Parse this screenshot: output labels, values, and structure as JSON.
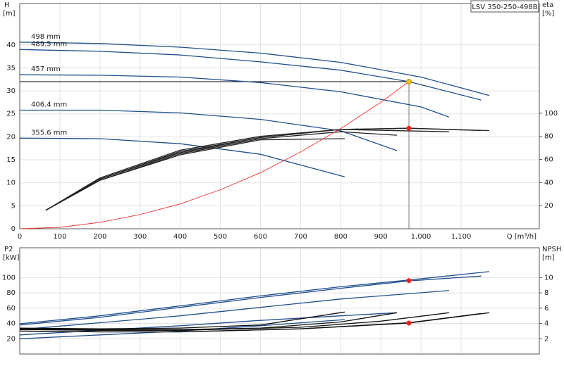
{
  "chart_data": [
    {
      "type": "line",
      "title": "LSV 350-250-498B",
      "ylabel": "H",
      "yunit": "[m]",
      "y2label": "eta",
      "y2unit": "[%]",
      "xlabel": "Q [m³/h]",
      "xlim": [
        0,
        1295
      ],
      "ylim": [
        0,
        49
      ],
      "y2lim": [
        0,
        195
      ],
      "xticks": [
        0,
        100,
        200,
        300,
        400,
        500,
        600,
        700,
        800,
        900,
        {
          "value": 1000,
          "label": "1,000"
        },
        {
          "value": 1100,
          "label": "1,100"
        }
      ],
      "yticks": [
        0,
        5,
        10,
        15,
        20,
        25,
        30,
        35,
        40
      ],
      "y2ticks": [
        20,
        40,
        60,
        80,
        100
      ],
      "grid": true,
      "series": [
        {
          "name": "498 mm",
          "color": "#1f4e8c",
          "x": [
            0,
            200,
            400,
            600,
            800,
            1000,
            1170
          ],
          "values": [
            40.6,
            40.3,
            39.5,
            38.2,
            36.2,
            33.0,
            29.0
          ]
        },
        {
          "name": "489.5 mm",
          "color": "#1f4e8c",
          "x": [
            0,
            200,
            400,
            600,
            800,
            970,
            1150
          ],
          "values": [
            39.0,
            38.6,
            37.8,
            36.3,
            34.5,
            32.0,
            28.0
          ]
        },
        {
          "name": "457 mm",
          "color": "#1f4e8c",
          "x": [
            0,
            200,
            400,
            600,
            800,
            1000,
            1070
          ],
          "values": [
            33.5,
            33.4,
            33.0,
            31.8,
            29.8,
            26.5,
            24.3
          ]
        },
        {
          "name": "406.4 mm",
          "color": "#1f4e8c",
          "x": [
            0,
            200,
            400,
            600,
            800,
            940
          ],
          "values": [
            25.8,
            25.8,
            25.2,
            23.8,
            21.3,
            17.0
          ]
        },
        {
          "name": "355.6 mm",
          "color": "#1f4e8c",
          "x": [
            0,
            200,
            400,
            600,
            810
          ],
          "values": [
            19.7,
            19.6,
            18.5,
            16.2,
            11.3
          ]
        },
        {
          "color": "#222222",
          "axis": "y2",
          "x": [
            65,
            200,
            400,
            600,
            800,
            970,
            1170
          ],
          "values": [
            16,
            44,
            68,
            80,
            86,
            87,
            85
          ]
        },
        {
          "color": "#222222",
          "axis": "y2",
          "x": [
            65,
            200,
            400,
            600,
            800,
            970,
            1150
          ],
          "values": [
            16,
            43,
            67,
            79,
            86,
            87,
            85
          ]
        },
        {
          "color": "#222222",
          "axis": "y2",
          "x": [
            65,
            200,
            400,
            600,
            800,
            1070
          ],
          "values": [
            16,
            43,
            66,
            79,
            86,
            84
          ]
        },
        {
          "color": "#222222",
          "axis": "y2",
          "x": [
            65,
            200,
            400,
            600,
            800,
            940
          ],
          "values": [
            16,
            42,
            65,
            78,
            84,
            81
          ]
        },
        {
          "color": "#222222",
          "axis": "y2",
          "x": [
            65,
            200,
            400,
            600,
            810
          ],
          "values": [
            16,
            42,
            64,
            77,
            78
          ]
        },
        {
          "color": "#ee3333",
          "x": [
            0,
            100,
            200,
            300,
            400,
            500,
            600,
            700,
            800,
            900,
            970
          ],
          "values": [
            0,
            0.3,
            1.4,
            3.1,
            5.4,
            8.5,
            12.2,
            16.7,
            21.8,
            27.5,
            32.0
          ]
        }
      ],
      "points": [
        {
          "x": 970,
          "y": 32,
          "color": "#f5c518"
        },
        {
          "x": 970,
          "y": 87,
          "axis": "y2",
          "color": "#ee2222"
        }
      ]
    },
    {
      "type": "line",
      "ylabel": "P2",
      "yunit": "[kW]",
      "y2label": "NPSH",
      "y2unit": "[m]",
      "xlim": [
        0,
        1295
      ],
      "ylim": [
        0,
        139
      ],
      "y2lim": [
        0,
        13.9
      ],
      "xticks": [
        100,
        200,
        300,
        400,
        500,
        600,
        700,
        800,
        900,
        1000,
        1100
      ],
      "show_xtick_labels": false,
      "yticks": [
        20,
        40,
        60,
        80,
        100
      ],
      "y2ticks": [
        2,
        4,
        6,
        8,
        10
      ],
      "grid": true,
      "series": [
        {
          "color": "#1f4e8c",
          "x": [
            0,
            200,
            400,
            600,
            800,
            970,
            1170
          ],
          "values": [
            39.6,
            50,
            63,
            76,
            88,
            96.8,
            107.8
          ]
        },
        {
          "color": "#1f4e8c",
          "x": [
            0,
            200,
            400,
            600,
            800,
            970,
            1150
          ],
          "values": [
            38,
            48,
            61,
            74,
            86,
            95.6,
            102
          ]
        },
        {
          "color": "#1f4e8c",
          "x": [
            0,
            200,
            400,
            600,
            800,
            1070
          ],
          "values": [
            32,
            41,
            50,
            61,
            72,
            83
          ]
        },
        {
          "color": "#1f4e8c",
          "x": [
            0,
            200,
            400,
            600,
            800,
            940
          ],
          "values": [
            25,
            31,
            37,
            44,
            50,
            54
          ]
        },
        {
          "color": "#1f4e8c",
          "x": [
            0,
            200,
            400,
            600,
            810
          ],
          "values": [
            20,
            25,
            30,
            37,
            45
          ]
        },
        {
          "color": "#111111",
          "axis": "y2",
          "x": [
            0,
            200,
            400,
            700,
            970,
            1170
          ],
          "values": [
            3.0,
            2.9,
            2.9,
            3.3,
            4.05,
            5.4
          ]
        },
        {
          "color": "#111111",
          "axis": "y2",
          "x": [
            0,
            200,
            400,
            700,
            970,
            1150
          ],
          "values": [
            3.0,
            2.9,
            2.9,
            3.3,
            4.1,
            5.3
          ]
        },
        {
          "color": "#111111",
          "axis": "y2",
          "x": [
            0,
            200,
            400,
            700,
            900,
            1070
          ],
          "values": [
            3.2,
            3.1,
            3.1,
            3.5,
            4.3,
            5.4
          ]
        },
        {
          "color": "#111111",
          "axis": "y2",
          "x": [
            0,
            200,
            400,
            600,
            800,
            940
          ],
          "values": [
            3.3,
            3.2,
            3.2,
            3.4,
            4.2,
            5.4
          ]
        },
        {
          "color": "#111111",
          "axis": "y2",
          "x": [
            0,
            200,
            400,
            600,
            810
          ],
          "values": [
            3.4,
            3.3,
            3.4,
            3.8,
            5.5
          ]
        }
      ],
      "points": [
        {
          "x": 970,
          "y": 96,
          "color": "#ee2222"
        },
        {
          "x": 970,
          "y": 4.05,
          "axis": "y2",
          "color": "#ee2222"
        }
      ]
    }
  ]
}
